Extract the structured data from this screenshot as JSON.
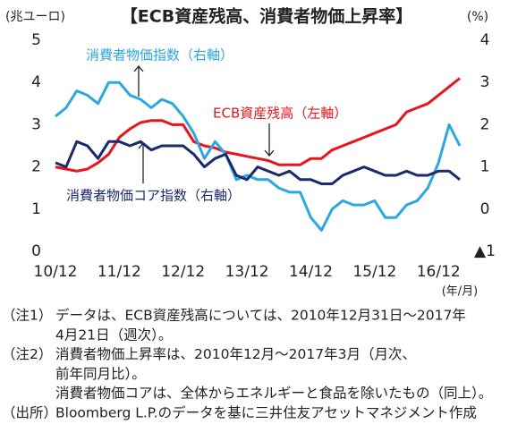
{
  "chart_data": {
    "type": "line",
    "title": "【ECB資産残高、消費者物価上昇率】",
    "y_label": "(兆ユーロ)",
    "y2_label": "(%)",
    "x_label": "(年/月)",
    "x": [
      "2010-12",
      "2011-02",
      "2011-04",
      "2011-06",
      "2011-08",
      "2011-10",
      "2011-12",
      "2012-02",
      "2012-04",
      "2012-06",
      "2012-08",
      "2012-10",
      "2012-12",
      "2013-02",
      "2013-04",
      "2013-06",
      "2013-08",
      "2013-10",
      "2013-12",
      "2014-02",
      "2014-04",
      "2014-06",
      "2014-08",
      "2014-10",
      "2014-12",
      "2015-02",
      "2015-04",
      "2015-06",
      "2015-08",
      "2015-10",
      "2015-12",
      "2016-02",
      "2016-04",
      "2016-06",
      "2016-08",
      "2016-10",
      "2016-12",
      "2017-02",
      "2017-04"
    ],
    "series": [
      {
        "name": "ECB資産残高（左軸）",
        "color": "#e8141e",
        "axis": "y",
        "values": [
          2.0,
          1.95,
          1.9,
          1.95,
          2.1,
          2.3,
          2.7,
          2.9,
          3.05,
          3.1,
          3.1,
          3.0,
          3.0,
          2.6,
          2.5,
          2.45,
          2.35,
          2.3,
          2.25,
          2.2,
          2.15,
          2.05,
          2.05,
          2.05,
          2.2,
          2.2,
          2.4,
          2.5,
          2.6,
          2.7,
          2.8,
          2.9,
          3.0,
          3.3,
          3.4,
          3.5,
          3.7,
          3.9,
          4.1
        ]
      },
      {
        "name": "消費者物価指数（右軸）",
        "color": "#2ba8e0",
        "axis": "y2",
        "values": [
          2.2,
          2.4,
          2.8,
          2.7,
          2.5,
          3.0,
          3.0,
          2.7,
          2.6,
          2.4,
          2.6,
          2.5,
          2.2,
          1.8,
          1.2,
          1.6,
          1.3,
          0.7,
          0.8,
          0.7,
          0.7,
          0.5,
          0.4,
          0.4,
          -0.2,
          -0.5,
          0.0,
          0.2,
          0.1,
          0.1,
          0.2,
          -0.2,
          -0.2,
          0.1,
          0.2,
          0.5,
          1.1,
          2.0,
          1.5
        ]
      },
      {
        "name": "消費者物価コア指数（右軸）",
        "color": "#1a2a6c",
        "axis": "y2",
        "values": [
          1.1,
          1.0,
          1.6,
          1.5,
          1.2,
          1.6,
          1.6,
          1.5,
          1.6,
          1.4,
          1.5,
          1.5,
          1.5,
          1.3,
          1.0,
          1.2,
          1.3,
          0.8,
          0.7,
          1.0,
          0.9,
          0.8,
          0.9,
          0.7,
          0.7,
          0.6,
          0.6,
          0.8,
          0.9,
          1.0,
          0.9,
          0.8,
          0.8,
          0.9,
          0.8,
          0.8,
          0.9,
          0.9,
          0.7
        ]
      }
    ],
    "xlim": [
      "2010-12",
      "2017-04"
    ],
    "xticks": [
      {
        "value": "2010-12",
        "label": "10/12"
      },
      {
        "value": "2011-12",
        "label": "11/12"
      },
      {
        "value": "2012-12",
        "label": "12/12"
      },
      {
        "value": "2013-12",
        "label": "13/12"
      },
      {
        "value": "2014-12",
        "label": "14/12"
      },
      {
        "value": "2015-12",
        "label": "15/12"
      },
      {
        "value": "2016-12",
        "label": "16/12"
      }
    ],
    "ylim": [
      0,
      5
    ],
    "yticks": [
      0,
      1,
      2,
      3,
      4,
      5
    ],
    "y2lim": [
      -1,
      4
    ],
    "y2ticks": [
      {
        "value": -1,
        "label": "▲1"
      },
      0,
      1,
      2,
      3,
      4
    ],
    "grid": false
  },
  "notes": [
    {
      "label": "（注1）",
      "lines": [
        "データは、ECB資産残高については、2010年12月31日～2017年",
        "4月21日（週次）。"
      ]
    },
    {
      "label": "（注2）",
      "lines": [
        "消費者物価上昇率は、2010年12月～2017年3月（月次、",
        "前年同月比）。",
        "消費者物価コアは、全体からエネルギーと食品を除いたもの（同上）。"
      ]
    },
    {
      "label": "（出所）",
      "lines": [
        "Bloomberg L.P.のデータを基に三井住友アセットマネジメント作成"
      ]
    }
  ]
}
